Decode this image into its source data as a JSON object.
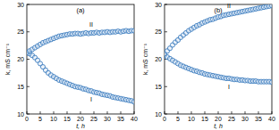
{
  "chart_data": [
    {
      "type": "scatter",
      "title": "(a)",
      "x_label": "t, h",
      "y_label": "k, mS cm⁻¹",
      "x": [
        0,
        1,
        2,
        3,
        4,
        5,
        6,
        7,
        8,
        9,
        10,
        11,
        12,
        13,
        14,
        15,
        16,
        17,
        18,
        19,
        20,
        21,
        22,
        23,
        24,
        25,
        26,
        27,
        28,
        29,
        30,
        31,
        32,
        33,
        34,
        35,
        36,
        37,
        38,
        39,
        40
      ],
      "series": [
        {
          "name": "I",
          "color": "#3f7fc0",
          "marker": "circle",
          "values": [
            21.2,
            21.0,
            20.7,
            20.3,
            19.8,
            19.2,
            18.6,
            18.0,
            17.5,
            17.1,
            16.8,
            16.5,
            16.2,
            16.0,
            15.8,
            15.6,
            15.4,
            15.2,
            15.0,
            14.9,
            14.8,
            14.6,
            14.5,
            14.3,
            14.2,
            14.0,
            13.9,
            13.8,
            13.6,
            13.5,
            13.4,
            13.3,
            13.1,
            13.0,
            12.9,
            12.8,
            12.7,
            12.6,
            12.5,
            12.4,
            12.2
          ]
        },
        {
          "name": "II",
          "color": "#3f7fc0",
          "marker": "circle",
          "values": [
            21.2,
            21.5,
            21.8,
            22.1,
            22.4,
            22.7,
            23.0,
            23.2,
            23.4,
            23.6,
            23.8,
            24.0,
            24.2,
            24.3,
            24.4,
            24.5,
            24.6,
            24.6,
            24.7,
            24.7,
            24.6,
            24.7,
            24.8,
            24.7,
            24.8,
            24.8,
            24.9,
            24.8,
            24.9,
            24.9,
            25.0,
            24.9,
            25.0,
            25.0,
            25.1,
            25.0,
            25.1,
            25.2,
            25.1,
            25.2,
            25.2
          ]
        }
      ],
      "xlim": [
        0,
        40
      ],
      "xticks": [
        0,
        5,
        10,
        15,
        20,
        25,
        30,
        35,
        40
      ],
      "ylim": [
        10,
        30
      ],
      "yticks": [
        10,
        15,
        20,
        25,
        30
      ],
      "grid": false
    },
    {
      "type": "scatter",
      "title": "(b)",
      "x_label": "t, h",
      "y_label": "k, mS cm⁻¹",
      "x": [
        0,
        1,
        2,
        3,
        4,
        5,
        6,
        7,
        8,
        9,
        10,
        11,
        12,
        13,
        14,
        15,
        16,
        17,
        18,
        19,
        20,
        21,
        22,
        23,
        24,
        25,
        26,
        27,
        28,
        29,
        30,
        31,
        32,
        33,
        34,
        35,
        36,
        37,
        38,
        39,
        40
      ],
      "series": [
        {
          "name": "I",
          "color": "#3f7fc0",
          "marker": "circle",
          "values": [
            20.7,
            20.4,
            20.1,
            19.8,
            19.5,
            19.2,
            18.9,
            18.7,
            18.5,
            18.3,
            18.1,
            17.9,
            17.8,
            17.6,
            17.5,
            17.3,
            17.2,
            17.1,
            17.0,
            16.9,
            16.8,
            16.7,
            16.6,
            16.5,
            16.5,
            16.4,
            16.3,
            16.3,
            16.2,
            16.2,
            16.1,
            16.1,
            16.0,
            16.0,
            16.0,
            15.9,
            15.9,
            15.9,
            15.9,
            15.9,
            15.8
          ]
        },
        {
          "name": "II",
          "color": "#3f7fc0",
          "marker": "circle",
          "values": [
            21.0,
            21.5,
            22.0,
            22.6,
            23.1,
            23.5,
            24.0,
            24.4,
            24.8,
            25.2,
            25.5,
            25.8,
            26.1,
            26.3,
            26.6,
            26.8,
            27.0,
            27.2,
            27.3,
            27.5,
            27.7,
            27.8,
            28.0,
            28.1,
            28.2,
            28.3,
            28.4,
            28.5,
            28.6,
            28.7,
            28.8,
            28.9,
            29.0,
            29.1,
            29.2,
            29.3,
            29.4,
            29.5,
            29.6,
            29.7,
            29.8
          ]
        }
      ],
      "xlim": [
        0,
        40
      ],
      "xticks": [
        0,
        5,
        10,
        15,
        20,
        25,
        30,
        35,
        40
      ],
      "ylim": [
        10,
        30
      ],
      "yticks": [
        10,
        15,
        20,
        25,
        30
      ],
      "grid": false
    }
  ]
}
